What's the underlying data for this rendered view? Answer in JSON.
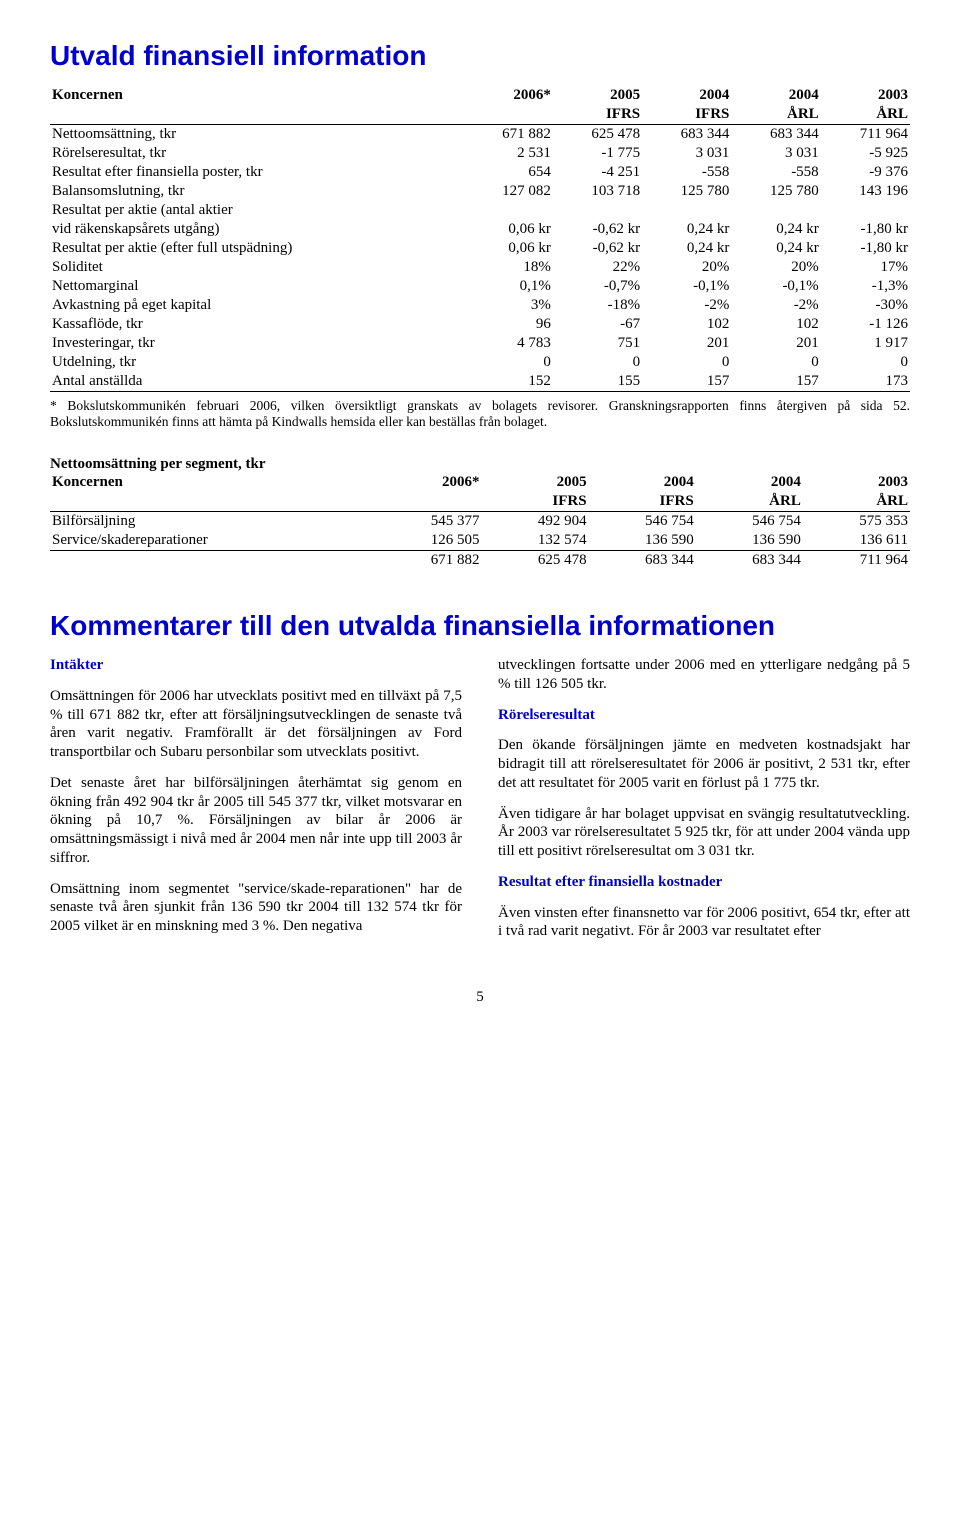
{
  "title1": "Utvald finansiell information",
  "title2": "Kommentarer till den utvalda finansiella informationen",
  "pagenum": "5",
  "table1": {
    "head_label": "Koncernen",
    "years": [
      "2006*",
      "2005",
      "2004",
      "2004",
      "2003"
    ],
    "standards": [
      "",
      "IFRS",
      "IFRS",
      "ÅRL",
      "ÅRL"
    ],
    "rows": [
      {
        "label": "Nettoomsättning, tkr",
        "vals": [
          "671 882",
          "625 478",
          "683 344",
          "683 344",
          "711 964"
        ]
      },
      {
        "label": "Rörelseresultat, tkr",
        "vals": [
          "2 531",
          "-1 775",
          "3 031",
          "3 031",
          "-5 925"
        ]
      },
      {
        "label": "Resultat efter finansiella poster, tkr",
        "vals": [
          "654",
          "-4 251",
          "-558",
          "-558",
          "-9 376"
        ]
      },
      {
        "label": "Balansomslutning, tkr",
        "vals": [
          "127 082",
          "103 718",
          "125 780",
          "125 780",
          "143 196"
        ]
      },
      {
        "label": "Resultat per aktie (antal aktier",
        "vals": [
          "",
          "",
          "",
          "",
          ""
        ]
      },
      {
        "label": "vid räkenskapsårets utgång)",
        "vals": [
          "0,06 kr",
          "-0,62 kr",
          "0,24 kr",
          "0,24 kr",
          "-1,80 kr"
        ]
      },
      {
        "label": "Resultat per aktie (efter full utspädning)",
        "vals": [
          "0,06 kr",
          "-0,62 kr",
          "0,24 kr",
          "0,24 kr",
          "-1,80 kr"
        ]
      },
      {
        "label": "Soliditet",
        "vals": [
          "18%",
          "22%",
          "20%",
          "20%",
          "17%"
        ]
      },
      {
        "label": "Nettomarginal",
        "vals": [
          "0,1%",
          "-0,7%",
          "-0,1%",
          "-0,1%",
          "-1,3%"
        ]
      },
      {
        "label": "Avkastning på eget kapital",
        "vals": [
          "3%",
          "-18%",
          "-2%",
          "-2%",
          "-30%"
        ]
      },
      {
        "label": "Kassaflöde, tkr",
        "vals": [
          "96",
          "-67",
          "102",
          "102",
          "-1 126"
        ]
      },
      {
        "label": "Investeringar, tkr",
        "vals": [
          "4 783",
          "751",
          "201",
          "201",
          "1 917"
        ]
      },
      {
        "label": "Utdelning, tkr",
        "vals": [
          "0",
          "0",
          "0",
          "0",
          "0"
        ]
      },
      {
        "label": "Antal anställda",
        "vals": [
          "152",
          "155",
          "157",
          "157",
          "173"
        ]
      }
    ]
  },
  "footnote": "* Bokslutskommunikén februari 2006, vilken översiktligt granskats av bolagets revisorer. Granskningsrapporten finns återgiven på sida 52. Bokslutskommunikén finns att hämta på Kindwalls hemsida eller kan beställas från bolaget.",
  "table2": {
    "title": "Nettoomsättning per segment, tkr",
    "head_label": "Koncernen",
    "years": [
      "2006*",
      "2005",
      "2004",
      "2004",
      "2003"
    ],
    "standards": [
      "",
      "IFRS",
      "IFRS",
      "ÅRL",
      "ÅRL"
    ],
    "rows": [
      {
        "label": "Bilförsäljning",
        "vals": [
          "545 377",
          "492 904",
          "546 754",
          "546 754",
          "575 353"
        ]
      },
      {
        "label": "Service/skadereparationer",
        "vals": [
          "126 505",
          "132 574",
          "136 590",
          "136 590",
          "136 611"
        ]
      }
    ],
    "sum": [
      "671 882",
      "625 478",
      "683 344",
      "683 344",
      "711 964"
    ]
  },
  "left": {
    "h_intakter": "Intäkter",
    "p1": "Omsättningen för 2006 har utvecklats positivt med en tillväxt på 7,5 % till 671 882 tkr, efter att försäljningsutvecklingen de senaste två åren varit negativ. Framförallt är det försäljningen av Ford transportbilar och Subaru personbilar som utvecklats positivt.",
    "p2": "Det senaste året har bilförsäljningen återhämtat sig genom en ökning från 492 904 tkr år 2005 till 545 377 tkr, vilket motsvarar en ökning på 10,7 %. Försäljningen av bilar år 2006 är omsättningsmässigt i nivå med år 2004 men når inte upp till 2003 år siffror.",
    "p3": "Omsättning inom segmentet \"service/skade-reparationen\" har de senaste två åren sjunkit från 136 590 tkr 2004 till 132 574 tkr för 2005 vilket är en minskning med 3 %. Den negativa"
  },
  "right": {
    "p0": "utvecklingen fortsatte under 2006 med en ytterligare nedgång på 5 % till 126 505 tkr.",
    "h_ror": "Rörelseresultat",
    "p1": "Den ökande försäljningen jämte en medveten kostnadsjakt har bidragit till att rörelseresultatet för 2006 är positivt, 2 531 tkr, efter det att resultatet för 2005 varit en förlust på 1 775 tkr.",
    "p2": "Även tidigare år har bolaget uppvisat en svängig resultatutveckling. År 2003 var rörelseresultatet 5 925 tkr, för att under 2004 vända upp till ett positivt rörelseresultat om 3 031 tkr.",
    "h_res": "Resultat efter finansiella kostnader",
    "p3": "Även vinsten efter finansnetto var för 2006 positivt, 654 tkr, efter att i två rad varit negativt. För år 2003 var resultatet efter"
  }
}
